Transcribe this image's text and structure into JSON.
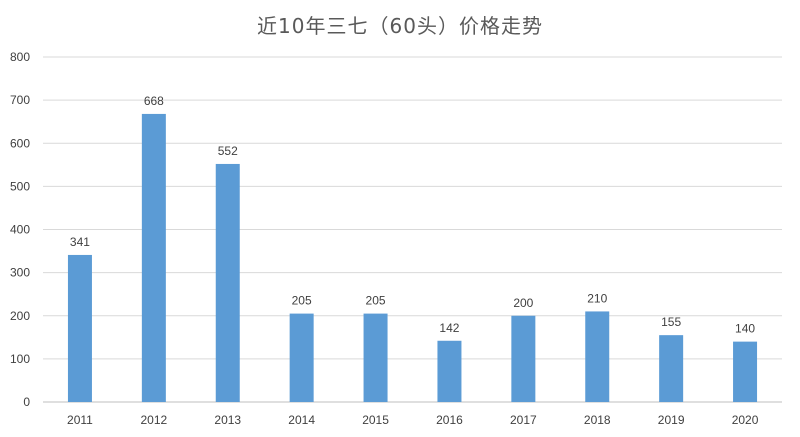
{
  "chart_data": {
    "type": "bar",
    "title": "近10年三七（60头）价格走势",
    "categories": [
      "2011",
      "2012",
      "2013",
      "2014",
      "2015",
      "2016",
      "2017",
      "2018",
      "2019",
      "2020"
    ],
    "values": [
      341,
      668,
      552,
      205,
      205,
      142,
      200,
      210,
      155,
      140
    ],
    "ylim": [
      0,
      800
    ],
    "yticks": [
      0,
      100,
      200,
      300,
      400,
      500,
      600,
      700,
      800
    ],
    "xlabel": "",
    "ylabel": "",
    "grid": true,
    "legend": "none",
    "bar_color": "#5b9bd5",
    "grid_color": "#d9d9d9"
  }
}
